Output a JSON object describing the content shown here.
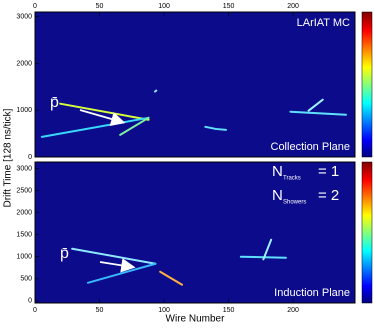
{
  "chart_data": [
    {
      "type": "line",
      "title": "LArIAT MC",
      "plane": "Collection Plane",
      "particle_label": "p̄",
      "ylabel": "Drift Time [128 ns/tick]",
      "xlim": [
        0,
        248
      ],
      "xticks": [
        0,
        50,
        100,
        150,
        200
      ],
      "ylim": [
        0,
        3100
      ],
      "yticks": [
        0,
        1000,
        2000,
        3000
      ],
      "series": [
        {
          "color": "#d6ff3a",
          "x": [
            19.5,
            88
          ],
          "values": [
            1140,
            796
          ]
        },
        {
          "color": "#38d8ff",
          "x": [
            5.4,
            88
          ],
          "values": [
            430,
            838
          ]
        },
        {
          "color": "#7cf0a0",
          "x": [
            66,
            88
          ],
          "values": [
            473,
            838
          ]
        },
        {
          "color": "#8fe8ff",
          "x": [
            93,
            94
          ],
          "values": [
            1400,
            1420
          ]
        },
        {
          "color": "#5fe0ff",
          "x": [
            132,
            140,
            148
          ],
          "values": [
            645,
            600,
            580
          ]
        },
        {
          "color": "#5fe0ff",
          "x": [
            198,
            241
          ],
          "values": [
            968,
            903
          ]
        },
        {
          "color": "#9ff0ff",
          "x": [
            212,
            223
          ],
          "values": [
            990,
            1226
          ]
        }
      ]
    },
    {
      "type": "line",
      "plane": "Induction Plane",
      "particle_label": "p̄",
      "xlabel": "Wire Number",
      "counts": [
        {
          "symbol": "N",
          "subscript": "Tracks",
          "text": "= 1"
        },
        {
          "symbol": "N",
          "subscript": "Showers",
          "text": "= 2"
        }
      ],
      "xlim": [
        0,
        248
      ],
      "xticks": [
        0,
        50,
        100,
        150,
        200
      ],
      "ylim": [
        -50,
        3150
      ],
      "yticks": [
        0,
        500,
        1000,
        1500,
        2000,
        2500,
        3000
      ],
      "series": [
        {
          "color": "#8fe8ff",
          "x": [
            28.8,
            93.4
          ],
          "values": [
            1182,
            841
          ]
        },
        {
          "color": "#38b8ff",
          "x": [
            41,
            93.4
          ],
          "values": [
            409,
            841
          ]
        },
        {
          "color": "#ffb040",
          "x": [
            97,
            105,
            114
          ],
          "values": [
            660,
            520,
            364
          ]
        },
        {
          "color": "#5fe0ff",
          "x": [
            159.5,
            194.5
          ],
          "values": [
            1000,
            977
          ]
        },
        {
          "color": "#9ff0ff",
          "x": [
            177,
            183
          ],
          "values": [
            940,
            1386
          ]
        }
      ]
    }
  ]
}
